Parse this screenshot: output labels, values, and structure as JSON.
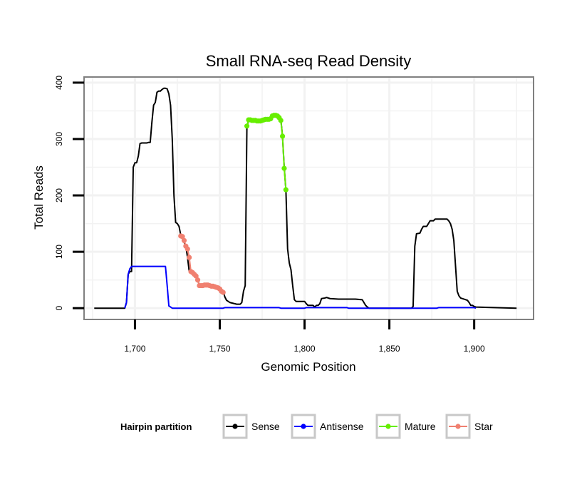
{
  "chart_data": {
    "type": "line",
    "title": "Small RNA-seq Read Density",
    "xlabel": "Genomic Position",
    "ylabel": "Total Reads",
    "xlim": [
      1670,
      1935
    ],
    "ylim": [
      -20,
      410
    ],
    "x_ticks": [
      1700,
      1750,
      1800,
      1850,
      1900
    ],
    "x_tick_labels": [
      "1,700",
      "1,750",
      "1,800",
      "1,850",
      "1,900"
    ],
    "y_ticks": [
      0,
      100,
      200,
      300,
      400
    ],
    "y_tick_labels": [
      "0",
      "100",
      "200",
      "300",
      "400"
    ],
    "grid": true,
    "legend": {
      "title": "Hairpin partition",
      "position": "bottom",
      "entries": [
        {
          "name": "Sense",
          "color": "#000000"
        },
        {
          "name": "Antisense",
          "color": "#0000ff"
        },
        {
          "name": "Mature",
          "color": "#66ee00"
        },
        {
          "name": "Star",
          "color": "#f08070"
        }
      ]
    },
    "series": [
      {
        "name": "Sense",
        "color": "#000000",
        "markers": false,
        "points": [
          [
            1676,
            0
          ],
          [
            1694,
            0
          ],
          [
            1695,
            10
          ],
          [
            1696,
            60
          ],
          [
            1697,
            65
          ],
          [
            1698,
            65
          ],
          [
            1699,
            250
          ],
          [
            1700,
            258
          ],
          [
            1701,
            258
          ],
          [
            1702,
            270
          ],
          [
            1703,
            292
          ],
          [
            1704,
            293
          ],
          [
            1705,
            293
          ],
          [
            1707,
            293
          ],
          [
            1708,
            294
          ],
          [
            1709,
            294
          ],
          [
            1710,
            330
          ],
          [
            1711,
            360
          ],
          [
            1712,
            365
          ],
          [
            1713,
            383
          ],
          [
            1714,
            385
          ],
          [
            1715,
            385
          ],
          [
            1716,
            388
          ],
          [
            1717,
            390
          ],
          [
            1718,
            390
          ],
          [
            1719,
            389
          ],
          [
            1720,
            380
          ],
          [
            1721,
            360
          ],
          [
            1722,
            300
          ],
          [
            1723,
            200
          ],
          [
            1724,
            152
          ],
          [
            1725,
            150
          ],
          [
            1726,
            145
          ],
          [
            1727,
            130
          ],
          [
            1730,
            110
          ],
          [
            1731,
            90
          ],
          [
            1732,
            65
          ],
          [
            1735,
            58
          ],
          [
            1737,
            50
          ],
          [
            1738,
            40
          ],
          [
            1740,
            40
          ],
          [
            1745,
            40
          ],
          [
            1750,
            35
          ],
          [
            1752,
            30
          ],
          [
            1753,
            20
          ],
          [
            1754,
            14
          ],
          [
            1755,
            12
          ],
          [
            1756,
            10
          ],
          [
            1760,
            7
          ],
          [
            1762,
            7
          ],
          [
            1763,
            10
          ],
          [
            1764,
            30
          ],
          [
            1765,
            40
          ],
          [
            1766,
            320
          ],
          [
            1767,
            335
          ],
          [
            1768,
            335
          ],
          [
            1769,
            334
          ],
          [
            1770,
            334
          ],
          [
            1771,
            333
          ],
          [
            1772,
            333
          ],
          [
            1773,
            333
          ],
          [
            1774,
            333
          ],
          [
            1775,
            334
          ],
          [
            1776,
            335
          ],
          [
            1777,
            335
          ],
          [
            1778,
            335
          ],
          [
            1779,
            336
          ],
          [
            1780,
            336
          ],
          [
            1781,
            340
          ],
          [
            1782,
            342
          ],
          [
            1783,
            342
          ],
          [
            1784,
            342
          ],
          [
            1785,
            340
          ],
          [
            1786,
            335
          ],
          [
            1787,
            305
          ],
          [
            1788,
            250
          ],
          [
            1789,
            210
          ],
          [
            1790,
            105
          ],
          [
            1791,
            80
          ],
          [
            1792,
            68
          ],
          [
            1793,
            40
          ],
          [
            1794,
            15
          ],
          [
            1795,
            12
          ],
          [
            1800,
            12
          ],
          [
            1801,
            8
          ],
          [
            1802,
            5
          ],
          [
            1803,
            5
          ],
          [
            1805,
            5
          ],
          [
            1806,
            2
          ],
          [
            1807,
            5
          ],
          [
            1808,
            5
          ],
          [
            1809,
            8
          ],
          [
            1810,
            17
          ],
          [
            1812,
            18
          ],
          [
            1813,
            19
          ],
          [
            1815,
            17
          ],
          [
            1820,
            16
          ],
          [
            1825,
            16
          ],
          [
            1830,
            16
          ],
          [
            1834,
            15
          ],
          [
            1835,
            10
          ],
          [
            1836,
            5
          ],
          [
            1837,
            2
          ],
          [
            1838,
            0
          ],
          [
            1863,
            0
          ],
          [
            1864,
            3
          ],
          [
            1865,
            110
          ],
          [
            1866,
            132
          ],
          [
            1868,
            133
          ],
          [
            1869,
            140
          ],
          [
            1870,
            145
          ],
          [
            1872,
            145
          ],
          [
            1873,
            150
          ],
          [
            1874,
            155
          ],
          [
            1876,
            155
          ],
          [
            1877,
            158
          ],
          [
            1884,
            158
          ],
          [
            1885,
            155
          ],
          [
            1886,
            150
          ],
          [
            1887,
            140
          ],
          [
            1888,
            120
          ],
          [
            1889,
            75
          ],
          [
            1890,
            30
          ],
          [
            1891,
            22
          ],
          [
            1892,
            18
          ],
          [
            1895,
            15
          ],
          [
            1896,
            14
          ],
          [
            1897,
            10
          ],
          [
            1898,
            5
          ],
          [
            1899,
            5
          ],
          [
            1900,
            3
          ],
          [
            1901,
            2
          ],
          [
            1925,
            0
          ]
        ]
      },
      {
        "name": "Antisense",
        "color": "#0000ff",
        "markers": false,
        "points": [
          [
            1694,
            0
          ],
          [
            1695,
            10
          ],
          [
            1696,
            60
          ],
          [
            1697,
            70
          ],
          [
            1698,
            74
          ],
          [
            1718,
            74
          ],
          [
            1719,
            40
          ],
          [
            1720,
            4
          ],
          [
            1721,
            2
          ],
          [
            1722,
            0
          ],
          [
            1752,
            0
          ],
          [
            1753,
            1
          ],
          [
            1785,
            1
          ],
          [
            1786,
            0
          ],
          [
            1800,
            0
          ],
          [
            1801,
            1
          ],
          [
            1825,
            1
          ],
          [
            1826,
            0
          ],
          [
            1878,
            0
          ],
          [
            1879,
            1
          ],
          [
            1900,
            1
          ],
          [
            1901,
            0
          ]
        ]
      },
      {
        "name": "Mature",
        "color": "#66ee00",
        "markers": true,
        "points": [
          [
            1766,
            323
          ],
          [
            1767,
            334
          ],
          [
            1768,
            334
          ],
          [
            1769,
            333
          ],
          [
            1770,
            333
          ],
          [
            1771,
            333
          ],
          [
            1772,
            332
          ],
          [
            1773,
            332
          ],
          [
            1774,
            332
          ],
          [
            1775,
            333
          ],
          [
            1776,
            334
          ],
          [
            1777,
            335
          ],
          [
            1778,
            335
          ],
          [
            1779,
            335
          ],
          [
            1780,
            336
          ],
          [
            1781,
            341
          ],
          [
            1782,
            342
          ],
          [
            1783,
            342
          ],
          [
            1784,
            341
          ],
          [
            1785,
            338
          ],
          [
            1786,
            333
          ],
          [
            1787,
            305
          ],
          [
            1788,
            248
          ],
          [
            1789,
            210
          ]
        ]
      },
      {
        "name": "Star",
        "color": "#f08070",
        "markers": true,
        "points": [
          [
            1727,
            128
          ],
          [
            1728,
            127
          ],
          [
            1729,
            120
          ],
          [
            1730,
            110
          ],
          [
            1731,
            105
          ],
          [
            1732,
            90
          ],
          [
            1733,
            65
          ],
          [
            1734,
            63
          ],
          [
            1735,
            60
          ],
          [
            1736,
            57
          ],
          [
            1737,
            50
          ],
          [
            1738,
            40
          ],
          [
            1739,
            40
          ],
          [
            1740,
            40
          ],
          [
            1741,
            41
          ],
          [
            1742,
            41
          ],
          [
            1743,
            41
          ],
          [
            1744,
            40
          ],
          [
            1745,
            39
          ],
          [
            1746,
            39
          ],
          [
            1747,
            38
          ],
          [
            1748,
            37
          ],
          [
            1749,
            36
          ],
          [
            1750,
            34
          ],
          [
            1751,
            30
          ],
          [
            1752,
            28
          ]
        ]
      }
    ]
  }
}
